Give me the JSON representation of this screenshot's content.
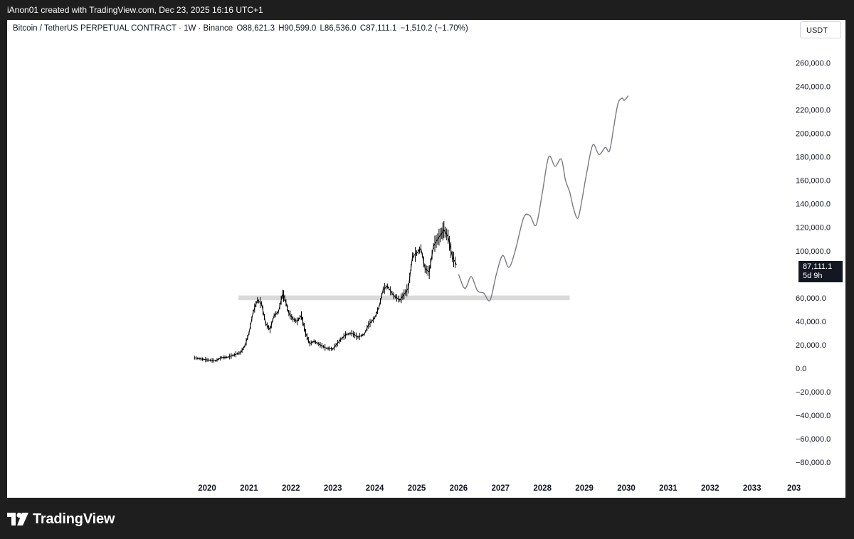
{
  "caption": "iAnon01 created with TradingView.com, Dec 23, 2025 16:16 UTC+1",
  "header": {
    "symbol": "Bitcoin / TetherUS PERPETUAL CONTRACT · 1W · Binance",
    "open": "O88,621.3",
    "high": "H90,599.0",
    "low": "L86,536.0",
    "close": "C87,111.1",
    "change": "−1,510.2 (−1.70%)"
  },
  "currency_button": "USDT",
  "price_tag": {
    "price": "87,111.1",
    "countdown": "5d 9h"
  },
  "brand": {
    "name": "TradingView",
    "logo_icon": "tradingview-logo-icon"
  },
  "colors": {
    "candles": "#000000",
    "projection": "#787b86",
    "zone": "#d9d9d9",
    "frame": "#1e1e1e"
  },
  "chart_data": {
    "type": "line",
    "x_ticks": [
      "2020",
      "2021",
      "2022",
      "2023",
      "2024",
      "2025",
      "2026",
      "2027",
      "2028",
      "2029",
      "2030",
      "2031",
      "2032",
      "2033",
      "203"
    ],
    "y_ticks": [
      "260,000.0",
      "240,000.0",
      "220,000.0",
      "200,000.0",
      "180,000.0",
      "160,000.0",
      "140,000.0",
      "120,000.0",
      "100,000.0",
      "60,000.0",
      "40,000.0",
      "20,000.0",
      "0.0",
      "−20,000.0",
      "−40,000.0",
      "−60,000.0",
      "−80,000.0"
    ],
    "ylim": [
      -90000,
      270000
    ],
    "series": [
      {
        "kind": "weekly-candles",
        "x": [
          2019.7,
          2019.85,
          2020.0,
          2020.2,
          2020.35,
          2020.5,
          2020.65,
          2020.8,
          2020.9,
          2021.0,
          2021.1,
          2021.2,
          2021.3,
          2021.4,
          2021.5,
          2021.6,
          2021.7,
          2021.8,
          2021.85,
          2021.95,
          2022.05,
          2022.15,
          2022.25,
          2022.35,
          2022.45,
          2022.55,
          2022.7,
          2022.85,
          2023.0,
          2023.15,
          2023.3,
          2023.45,
          2023.6,
          2023.75,
          2023.85,
          2024.0,
          2024.1,
          2024.2,
          2024.3,
          2024.45,
          2024.6,
          2024.7,
          2024.8,
          2024.9,
          2025.0,
          2025.1,
          2025.2,
          2025.3,
          2025.4,
          2025.5,
          2025.6,
          2025.65,
          2025.75,
          2025.85,
          2025.95
        ],
        "y": [
          9000,
          8000,
          7200,
          6500,
          9200,
          9500,
          11500,
          13500,
          19000,
          30000,
          48000,
          58000,
          55000,
          38000,
          33000,
          45000,
          48000,
          63000,
          60000,
          47000,
          42000,
          40000,
          45000,
          30000,
          21000,
          23000,
          20000,
          17000,
          16500,
          23000,
          28500,
          30000,
          26500,
          29000,
          37000,
          43000,
          52000,
          67000,
          70000,
          62000,
          58000,
          63000,
          68000,
          95000,
          98000,
          102000,
          85000,
          82000,
          104000,
          110000,
          115000,
          118000,
          112000,
          95000,
          88000
        ]
      },
      {
        "kind": "projection",
        "x": [
          2026.0,
          2026.15,
          2026.3,
          2026.45,
          2026.6,
          2026.75,
          2026.9,
          2027.05,
          2027.2,
          2027.35,
          2027.55,
          2027.7,
          2027.85,
          2028.0,
          2028.15,
          2028.3,
          2028.45,
          2028.55,
          2028.65,
          2028.75,
          2028.85,
          2028.95,
          2029.05,
          2029.2,
          2029.35,
          2029.5,
          2029.6,
          2029.7,
          2029.8,
          2029.9,
          2029.95,
          2030.05
        ],
        "y": [
          80000,
          68000,
          78000,
          66000,
          64000,
          58000,
          80000,
          96000,
          86000,
          100000,
          128000,
          130000,
          122000,
          150000,
          180000,
          172000,
          178000,
          160000,
          150000,
          135000,
          128000,
          145000,
          165000,
          190000,
          182000,
          188000,
          185000,
          205000,
          225000,
          230000,
          228000,
          232000
        ]
      }
    ],
    "support_zone": {
      "y_low": 58000,
      "y_high": 62000,
      "x_start": 2020.75,
      "x_end": 2028.65
    }
  }
}
